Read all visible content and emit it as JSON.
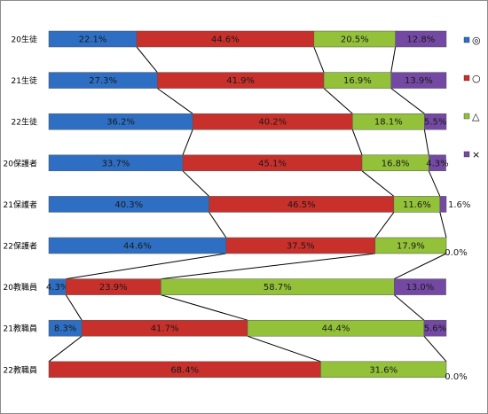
{
  "chart_data": {
    "type": "bar",
    "stacked": true,
    "percent": true,
    "orientation": "horizontal",
    "categories": [
      "20生徒",
      "21生徒",
      "22生徒",
      "20保護者",
      "21保護者",
      "22保護者",
      "20教職員",
      "21教職員",
      "22教職員"
    ],
    "series": [
      {
        "name": "◎",
        "color": "#2e6fc4",
        "values": [
          22.1,
          27.3,
          36.2,
          33.7,
          40.3,
          44.6,
          4.3,
          8.3,
          0.0
        ]
      },
      {
        "name": "○",
        "color": "#c8302c",
        "values": [
          44.6,
          41.9,
          40.2,
          45.1,
          46.5,
          37.5,
          23.9,
          41.7,
          68.4
        ]
      },
      {
        "name": "△",
        "color": "#93c13a",
        "values": [
          20.5,
          16.9,
          18.1,
          16.8,
          11.6,
          17.9,
          58.7,
          44.4,
          31.6
        ]
      },
      {
        "name": "×",
        "color": "#7449a3",
        "values": [
          12.8,
          13.9,
          5.5,
          4.3,
          1.6,
          0.0,
          13.0,
          5.6,
          0.0
        ]
      }
    ],
    "data_labels": [
      [
        "22.1%",
        "44.6%",
        "20.5%",
        "12.8%"
      ],
      [
        "27.3%",
        "41.9%",
        "16.9%",
        "13.9%"
      ],
      [
        "36.2%",
        "40.2%",
        "18.1%",
        "5.5%"
      ],
      [
        "33.7%",
        "45.1%",
        "16.8%",
        "4.3%"
      ],
      [
        "40.3%",
        "46.5%",
        "11.6%",
        "1.6%"
      ],
      [
        "44.6%",
        "37.5%",
        "17.9%",
        "0.0%"
      ],
      [
        "4.3%",
        "23.9%",
        "58.7%",
        "13.0%"
      ],
      [
        "8.3%",
        "41.7%",
        "44.4%",
        "5.6%"
      ],
      [
        "0.0%",
        "68.4%",
        "31.6%",
        "0.0%"
      ]
    ],
    "legend_position": "right",
    "series_lines": true,
    "grid": false,
    "xlim": [
      0,
      100
    ]
  }
}
